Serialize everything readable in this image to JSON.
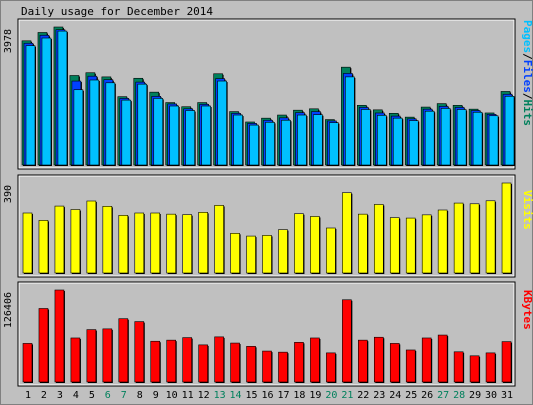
{
  "title": "Daily usage for December 2014",
  "colors": {
    "background": "#c0c0c0",
    "plot_bg": "#ffffff",
    "hits": "#00805c",
    "files": "#0040ff",
    "pages": "#00c0ff",
    "visits": "#ffff00",
    "kbytes": "#ff0000",
    "weekday_label": "#000000",
    "weekend_label": "#00805c"
  },
  "chart_data": [
    {
      "type": "bar",
      "name": "pages-files-hits",
      "title": "Daily usage for December 2014",
      "ylabel_parts": [
        "Pages",
        "/",
        "Files",
        "/",
        "Hits"
      ],
      "max_label": "3978",
      "ylim": [
        0,
        3978
      ],
      "categories": [
        "1",
        "2",
        "3",
        "4",
        "5",
        "6",
        "7",
        "8",
        "9",
        "10",
        "11",
        "12",
        "13",
        "14",
        "15",
        "16",
        "17",
        "18",
        "19",
        "20",
        "21",
        "22",
        "23",
        "24",
        "25",
        "26",
        "27",
        "28",
        "29",
        "30",
        "31"
      ],
      "series": [
        {
          "name": "Hits",
          "values": [
            3580,
            3820,
            3978,
            2580,
            2660,
            2540,
            1970,
            2500,
            2100,
            1800,
            1680,
            1800,
            2630,
            1540,
            1240,
            1350,
            1440,
            1580,
            1620,
            1310,
            2820,
            1720,
            1590,
            1490,
            1380,
            1670,
            1770,
            1720,
            1610,
            1500,
            2120
          ]
        },
        {
          "name": "Files",
          "values": [
            3510,
            3740,
            3900,
            2420,
            2560,
            2460,
            1920,
            2390,
            1980,
            1760,
            1620,
            1750,
            2490,
            1490,
            1200,
            1290,
            1360,
            1510,
            1540,
            1270,
            2640,
            1660,
            1500,
            1410,
            1330,
            1610,
            1690,
            1660,
            1570,
            1460,
            2040
          ]
        },
        {
          "name": "Pages",
          "values": [
            3440,
            3660,
            3860,
            2170,
            2450,
            2370,
            1870,
            2330,
            1920,
            1700,
            1570,
            1700,
            2420,
            1440,
            1150,
            1230,
            1290,
            1440,
            1450,
            1220,
            2540,
            1600,
            1430,
            1350,
            1280,
            1550,
            1630,
            1600,
            1520,
            1420,
            1980
          ]
        }
      ]
    },
    {
      "type": "bar",
      "name": "visits",
      "ylabel": "Visits",
      "max_label": "390",
      "ylim": [
        0,
        390
      ],
      "categories": [
        "1",
        "2",
        "3",
        "4",
        "5",
        "6",
        "7",
        "8",
        "9",
        "10",
        "11",
        "12",
        "13",
        "14",
        "15",
        "16",
        "17",
        "18",
        "19",
        "20",
        "21",
        "22",
        "23",
        "24",
        "25",
        "26",
        "27",
        "28",
        "29",
        "30",
        "31"
      ],
      "series": [
        {
          "name": "Visits",
          "values": [
            260,
            228,
            290,
            275,
            312,
            289,
            250,
            260,
            260,
            255,
            253,
            263,
            293,
            172,
            160,
            163,
            188,
            257,
            245,
            195,
            348,
            255,
            297,
            240,
            238,
            252,
            273,
            303,
            300,
            313,
            390
          ]
        }
      ]
    },
    {
      "type": "bar",
      "name": "kbytes",
      "ylabel": "KBytes",
      "max_label": "126406",
      "ylim": [
        0,
        126406
      ],
      "categories": [
        "1",
        "2",
        "3",
        "4",
        "5",
        "6",
        "7",
        "8",
        "9",
        "10",
        "11",
        "12",
        "13",
        "14",
        "15",
        "16",
        "17",
        "18",
        "19",
        "20",
        "21",
        "22",
        "23",
        "24",
        "25",
        "26",
        "27",
        "28",
        "29",
        "30",
        "31"
      ],
      "series": [
        {
          "name": "KBytes",
          "values": [
            53000,
            101000,
            126406,
            60500,
            72000,
            73000,
            87000,
            83000,
            56000,
            57500,
            61000,
            51000,
            62000,
            53500,
            49000,
            42500,
            41000,
            54500,
            60500,
            40000,
            113000,
            57500,
            61500,
            53000,
            44000,
            60500,
            64500,
            41500,
            36000,
            40000,
            55500
          ]
        }
      ]
    }
  ],
  "weekend_days": [
    "6",
    "7",
    "13",
    "14",
    "20",
    "21",
    "27",
    "28"
  ]
}
